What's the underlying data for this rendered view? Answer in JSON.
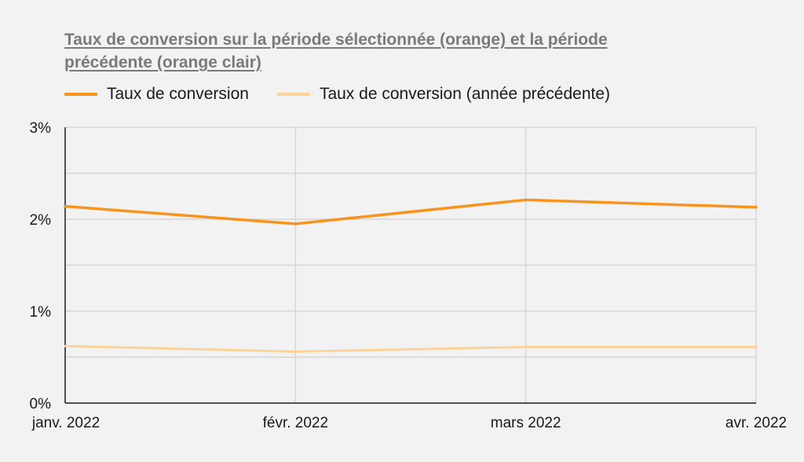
{
  "chart_data": {
    "type": "line",
    "title": "Taux de conversion sur la période sélectionnée (orange) et la période précédente (orange clair)",
    "categories": [
      "janv. 2022",
      "févr. 2022",
      "mars 2022",
      "avr. 2022"
    ],
    "series": [
      {
        "name": "Taux de conversion",
        "color": "#f7941d",
        "values": [
          2.14,
          1.95,
          2.21,
          2.13
        ]
      },
      {
        "name": "Taux de conversion (année précédente)",
        "color": "#fcd49a",
        "values": [
          0.62,
          0.56,
          0.61,
          0.61
        ]
      }
    ],
    "ylim": [
      0,
      3
    ],
    "yticks": [
      0,
      1,
      2,
      3
    ],
    "ytick_labels": [
      "0%",
      "1%",
      "2%",
      "3%"
    ],
    "xlabel": "",
    "ylabel": "",
    "grid": true,
    "legend_position": "top-left",
    "colors": {
      "background": "#f2f2f2",
      "grid": "#d6d6d6",
      "axis": "#1a1a1a",
      "title": "#7a7a7a"
    }
  }
}
